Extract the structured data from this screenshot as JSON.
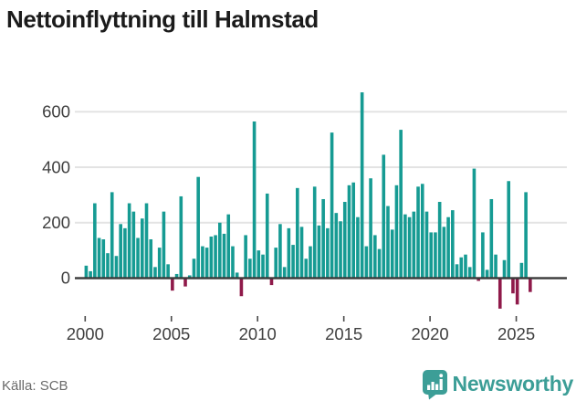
{
  "title": "Nettoinflyttning till Halmstad",
  "footer": {
    "source": "Källa: SCB",
    "brand_name": "Newsworthy"
  },
  "colors": {
    "positive_bar": "#169b93",
    "negative_bar": "#8f1a4a",
    "axis_line": "#3a3a3a",
    "gridline": "#e3e3e3",
    "tick_mark": "#4a4a4a",
    "tick_label": "#404040",
    "title_text": "#1b1b1b",
    "source_text": "#6a6a6a",
    "brand": "#3c9e97"
  },
  "chart_data": {
    "type": "bar",
    "title": "Nettoinflyttning till Halmstad",
    "xlabel": "",
    "ylabel": "",
    "frequency": "quarterly",
    "x_start": "2000 Q1",
    "x_end": "2025 Q4",
    "x_tick_labels": [
      "2000",
      "2005",
      "2010",
      "2015",
      "2020",
      "2025"
    ],
    "y_ticks": [
      0,
      200,
      400,
      600
    ],
    "ylim": [
      -140,
      700
    ],
    "grid": "horizontal",
    "legend": "none",
    "values": [
      45,
      25,
      270,
      145,
      140,
      90,
      310,
      80,
      195,
      180,
      270,
      240,
      145,
      215,
      270,
      140,
      40,
      110,
      240,
      50,
      -45,
      15,
      295,
      -30,
      10,
      70,
      365,
      115,
      110,
      150,
      155,
      200,
      160,
      230,
      115,
      20,
      -65,
      155,
      70,
      565,
      100,
      85,
      305,
      -25,
      110,
      195,
      40,
      180,
      120,
      325,
      185,
      70,
      115,
      330,
      190,
      285,
      180,
      525,
      235,
      205,
      275,
      335,
      345,
      220,
      670,
      115,
      360,
      155,
      105,
      445,
      260,
      175,
      335,
      535,
      230,
      220,
      240,
      330,
      340,
      240,
      165,
      165,
      275,
      185,
      220,
      245,
      50,
      75,
      85,
      40,
      395,
      -10,
      165,
      30,
      285,
      85,
      -110,
      65,
      350,
      -55,
      -95,
      55,
      310,
      -50
    ]
  }
}
